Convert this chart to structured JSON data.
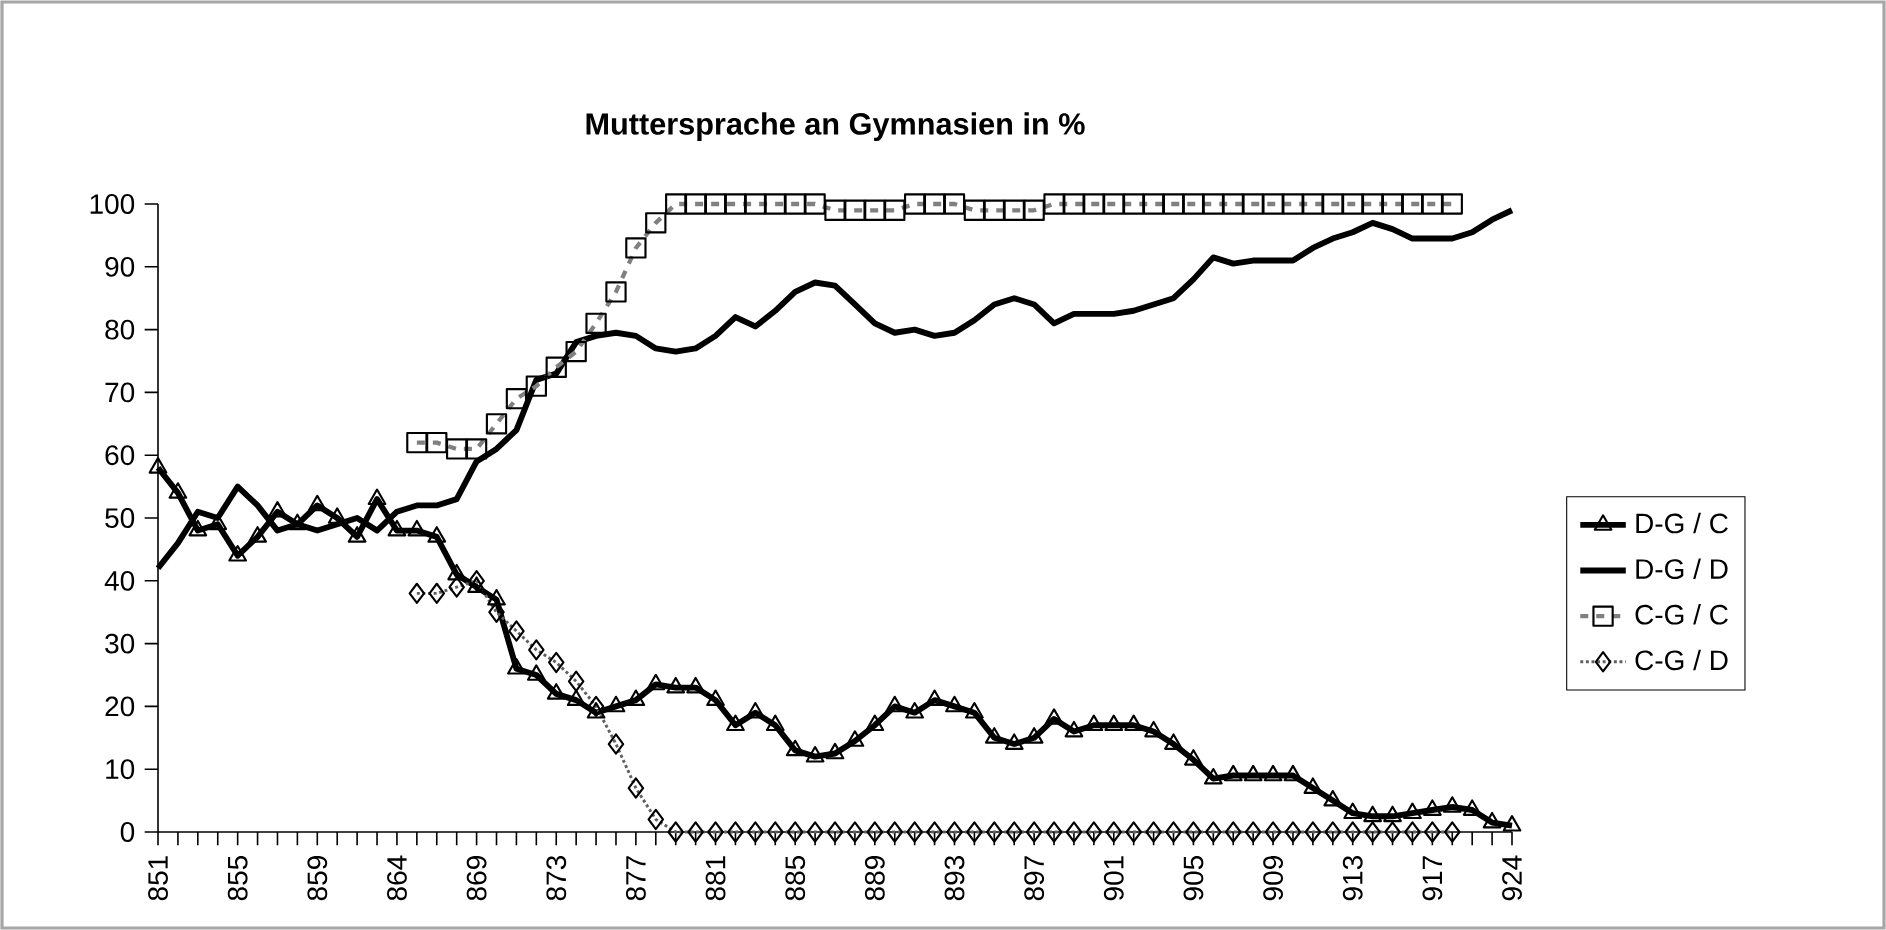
{
  "chart_data": {
    "type": "line",
    "title": "Muttersprache an Gymnasien in %",
    "categories": [
      "851",
      null,
      null,
      null,
      "855",
      null,
      null,
      null,
      "859",
      null,
      null,
      null,
      "864",
      null,
      null,
      null,
      "869",
      null,
      null,
      null,
      "873",
      null,
      null,
      null,
      "877",
      null,
      null,
      null,
      "881",
      null,
      null,
      null,
      "885",
      null,
      null,
      null,
      "889",
      null,
      null,
      null,
      "893",
      null,
      null,
      null,
      "897",
      null,
      null,
      null,
      "901",
      null,
      null,
      null,
      "905",
      null,
      null,
      null,
      "909",
      null,
      null,
      null,
      "913",
      null,
      null,
      null,
      "917",
      null,
      null,
      null,
      "924"
    ],
    "ylim": [
      0,
      100
    ],
    "yticks": [
      0,
      10,
      20,
      30,
      40,
      50,
      60,
      70,
      80,
      90,
      100
    ],
    "grid": false,
    "legend": "right",
    "series": [
      {
        "name": "D-G / C",
        "color": "#000000",
        "marker": "triangle",
        "line_style": "solid",
        "values": [
          58,
          54,
          48,
          49,
          44,
          47,
          51,
          49,
          52,
          50,
          47,
          53,
          48,
          48,
          47,
          41,
          39,
          37,
          26,
          25,
          22,
          21,
          19,
          20,
          21,
          23.5,
          23,
          23,
          21,
          17,
          19,
          17,
          13,
          12,
          12.5,
          14.5,
          17,
          20,
          19,
          21,
          20,
          19,
          15,
          14,
          15,
          18,
          16,
          17,
          17,
          17,
          16,
          14,
          11.5,
          8.5,
          9,
          9,
          9,
          9,
          7,
          5,
          3,
          2.5,
          2.5,
          3,
          3.5,
          4,
          3.5,
          1.5,
          1
        ]
      },
      {
        "name": "D-G / D",
        "color": "#000000",
        "marker": "none",
        "line_style": "solid",
        "values": [
          42,
          46,
          51,
          50,
          55,
          52,
          48,
          49,
          48,
          49,
          50,
          48,
          51,
          52,
          52,
          53,
          59,
          61,
          64,
          72,
          73,
          78,
          79,
          79.5,
          79,
          77,
          76.5,
          77,
          79,
          82,
          80.5,
          83,
          86,
          87.5,
          87,
          84,
          81,
          79.5,
          80,
          79,
          79.5,
          81.5,
          84,
          85,
          84,
          81,
          82.5,
          82.5,
          82.5,
          83,
          84,
          85,
          88,
          91.5,
          90.5,
          91,
          91,
          91,
          93,
          94.5,
          95.5,
          97,
          96,
          94.5,
          94.5,
          94.5,
          95.5,
          97.5,
          99
        ]
      },
      {
        "name": "C-G / C",
        "color": "#808080",
        "marker": "square",
        "line_style": "dashed",
        "values": [
          null,
          null,
          null,
          null,
          null,
          null,
          null,
          null,
          null,
          null,
          null,
          null,
          null,
          62,
          62,
          61,
          61,
          65,
          69,
          71,
          74,
          76.5,
          81,
          86,
          93,
          97,
          100,
          100,
          100,
          100,
          100,
          100,
          100,
          100,
          99,
          99,
          99,
          99,
          100,
          100,
          100,
          99,
          99,
          99,
          99,
          100,
          100,
          100,
          100,
          100,
          100,
          100,
          100,
          100,
          100,
          100,
          100,
          100,
          100,
          100,
          100,
          100,
          100,
          100,
          100,
          100,
          null,
          null,
          null
        ]
      },
      {
        "name": "C-G / D",
        "color": "#606060",
        "marker": "diamond",
        "line_style": "dotted",
        "values": [
          null,
          null,
          null,
          null,
          null,
          null,
          null,
          null,
          null,
          null,
          null,
          null,
          null,
          38,
          38,
          39,
          40,
          35,
          32,
          29,
          27,
          24,
          20,
          14,
          7,
          2,
          0,
          0,
          0,
          0,
          0,
          0,
          0,
          0,
          0,
          0,
          0,
          0,
          0,
          0,
          0,
          0,
          0,
          0,
          0,
          0,
          0,
          0,
          0,
          0,
          0,
          0,
          0,
          0,
          0,
          0,
          0,
          0,
          0,
          0,
          0,
          0,
          0,
          0,
          0,
          0,
          null,
          null,
          null
        ]
      }
    ]
  }
}
